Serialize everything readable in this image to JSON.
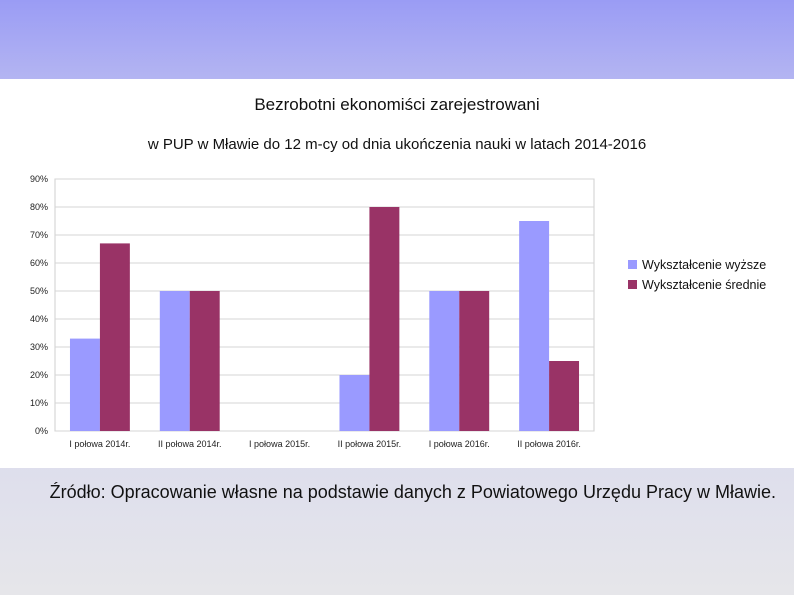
{
  "chart_data": {
    "type": "bar",
    "title": "Bezrobotni ekonomiści zarejestrowani",
    "subtitle": "w PUP w Mławie do 12 m-cy od dnia ukończenia nauki w latach 2014-2016",
    "categories": [
      "I połowa 2014r.",
      "II połowa 2014r.",
      "I połowa 2015r.",
      "II połowa 2015r.",
      "I połowa 2016r.",
      "II połowa 2016r."
    ],
    "series": [
      {
        "name": "Wykształcenie wyższe",
        "color": "#9a9aff",
        "values": [
          33,
          50,
          0,
          20,
          50,
          75
        ]
      },
      {
        "name": "Wykształcenie średnie",
        "color": "#993366",
        "values": [
          67,
          50,
          0,
          80,
          50,
          25
        ]
      }
    ],
    "yticks": [
      "0%",
      "10%",
      "20%",
      "30%",
      "40%",
      "50%",
      "60%",
      "70%",
      "80%",
      "90%"
    ],
    "ylim": [
      0,
      90
    ],
    "unit": "%",
    "grid": true,
    "legend_position": "right"
  },
  "source_note": "Źródło: Opracowanie własne na podstawie danych z Powiatowego Urzędu Pracy w Mławie."
}
